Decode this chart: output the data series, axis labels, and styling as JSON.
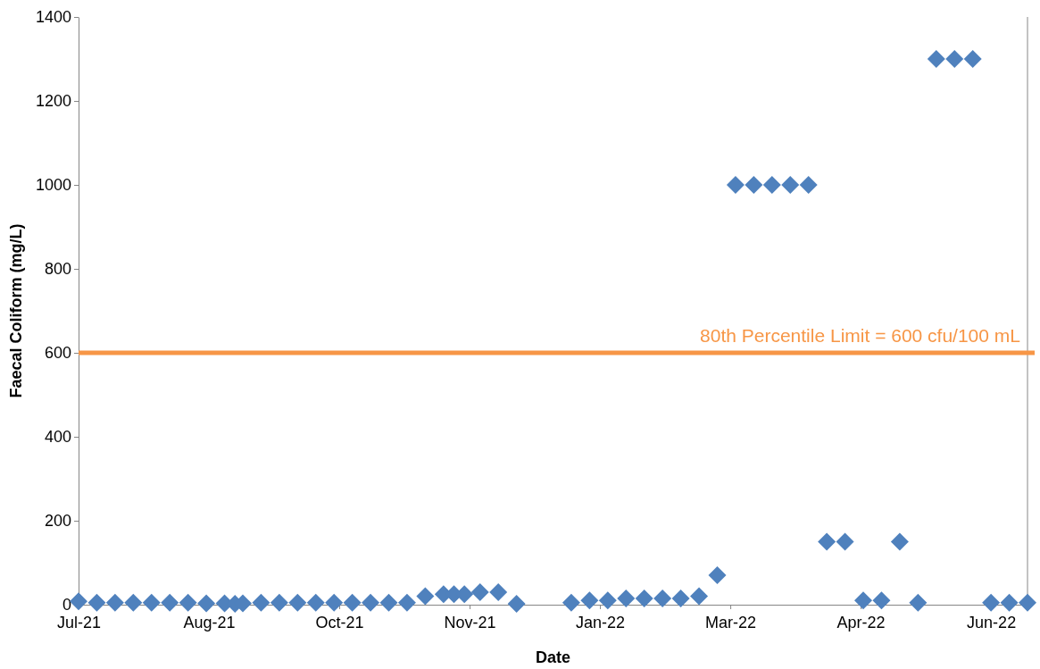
{
  "chart_data": {
    "type": "scatter",
    "xlabel": "Date",
    "ylabel": "Faecal Coliform  (mg/L)",
    "xlim": [
      "2021-07-01",
      "2022-06-30"
    ],
    "xticks": [
      {
        "value": "2021-07-01",
        "label": "Jul-21"
      },
      {
        "value": "2021-08-20",
        "label": "Aug-21"
      },
      {
        "value": "2021-10-09",
        "label": "Oct-21"
      },
      {
        "value": "2021-11-28",
        "label": "Nov-21"
      },
      {
        "value": "2022-01-17",
        "label": "Jan-22"
      },
      {
        "value": "2022-03-08",
        "label": "Mar-22"
      },
      {
        "value": "2022-04-27",
        "label": "Apr-22"
      },
      {
        "value": "2022-06-16",
        "label": "Jun-22"
      }
    ],
    "ylim": [
      0,
      1400
    ],
    "yticks": [
      0,
      200,
      400,
      600,
      800,
      1000,
      1200,
      1400
    ],
    "marker": "diamond",
    "grid": false,
    "series": [
      {
        "color": "#4f81bd",
        "x": [
          "2021-07-01",
          "2021-07-08",
          "2021-07-15",
          "2021-07-22",
          "2021-07-29",
          "2021-08-05",
          "2021-08-12",
          "2021-08-19",
          "2021-08-26",
          "2021-08-30",
          "2021-09-02",
          "2021-09-09",
          "2021-09-16",
          "2021-09-23",
          "2021-09-30",
          "2021-10-07",
          "2021-10-14",
          "2021-10-21",
          "2021-10-28",
          "2021-11-04",
          "2021-11-11",
          "2021-11-18",
          "2021-11-22",
          "2021-11-26",
          "2021-12-02",
          "2021-12-09",
          "2021-12-16",
          "2022-01-06",
          "2022-01-13",
          "2022-01-20",
          "2022-01-27",
          "2022-02-03",
          "2022-02-10",
          "2022-02-17",
          "2022-02-24",
          "2022-03-03",
          "2022-03-10",
          "2022-03-17",
          "2022-03-24",
          "2022-03-31",
          "2022-04-07",
          "2022-04-14",
          "2022-04-21",
          "2022-04-28",
          "2022-05-05",
          "2022-05-12",
          "2022-05-19",
          "2022-05-26",
          "2022-06-02",
          "2022-06-09",
          "2022-06-16",
          "2022-06-23",
          "2022-06-30"
        ],
        "values": [
          8,
          5,
          5,
          5,
          5,
          5,
          5,
          3,
          3,
          2,
          3,
          5,
          5,
          5,
          5,
          5,
          5,
          5,
          5,
          5,
          20,
          25,
          25,
          25,
          30,
          30,
          2,
          5,
          10,
          10,
          15,
          15,
          15,
          15,
          20,
          70,
          1000,
          1000,
          1000,
          1000,
          1000,
          150,
          150,
          10,
          10,
          150,
          5,
          1300,
          1300,
          1300,
          5,
          5,
          5
        ]
      }
    ],
    "ref_lines": [
      {
        "axis": "y",
        "value": 600,
        "label": "80th Percentile Limit = 600 cfu/100 mL",
        "color": "#f79646"
      }
    ]
  }
}
